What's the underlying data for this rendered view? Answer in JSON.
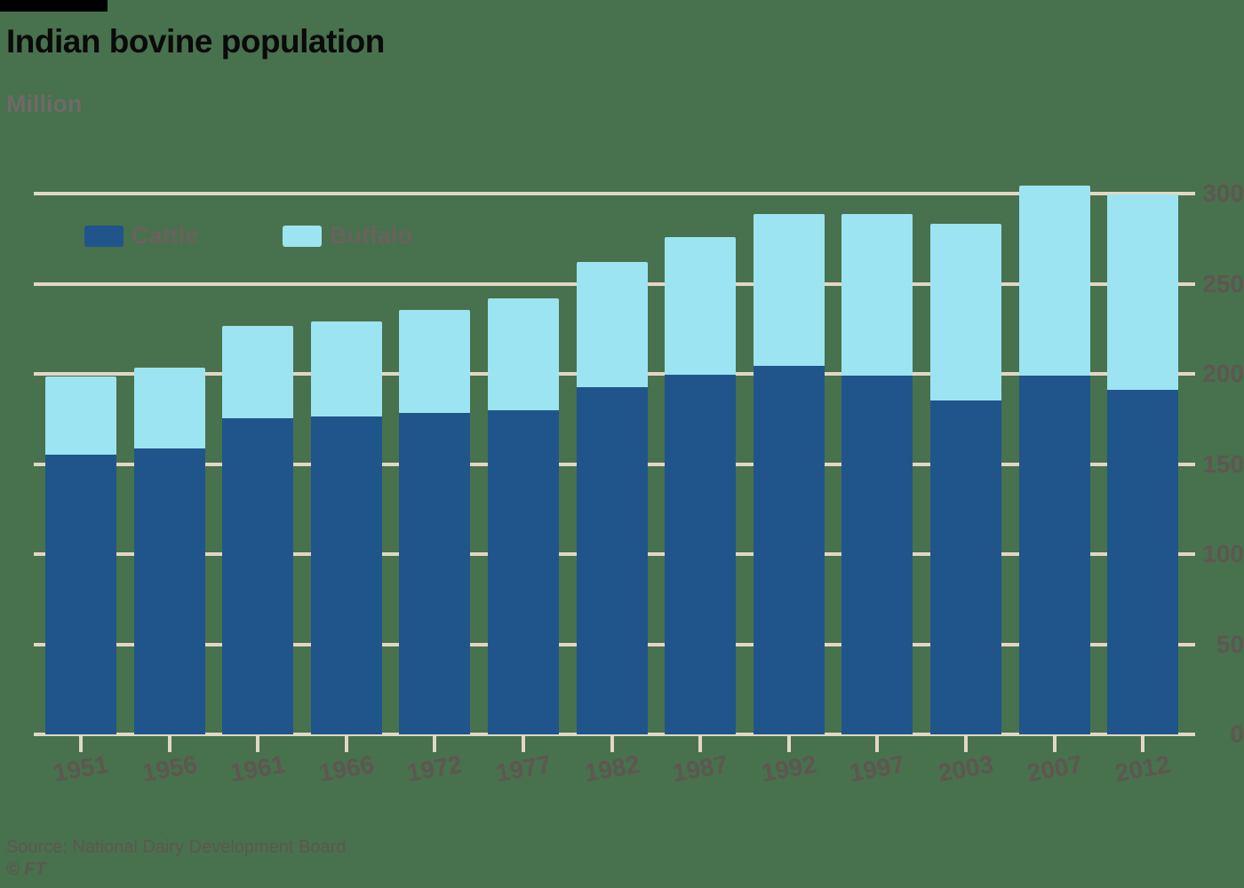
{
  "header": {
    "title": "Indian bovine population",
    "subtitle": "Million"
  },
  "legend": [
    {
      "label": "Cattle",
      "color": "#20558C"
    },
    {
      "label": "Buffalo",
      "color": "#9CE4F1"
    }
  ],
  "footer": {
    "source": "Source: National Dairy Development Board",
    "copyright": "© FT"
  },
  "colors": {
    "background": "#48714D",
    "cattle": "#20558C",
    "buffalo": "#9CE4F1",
    "gridline": "#E2D7C6",
    "title_text": "#0A0A0A",
    "axis_text": "#5D5751",
    "subtitle_text": "#6E6A67",
    "legend_text": "#68635D",
    "source_text": "#5C5751"
  },
  "chart_data": {
    "type": "bar",
    "stacked": true,
    "title": "Indian bovine population",
    "ylabel": "Million",
    "xlabel": "",
    "ylim": [
      0,
      300
    ],
    "yticks": [
      0,
      50,
      100,
      150,
      200,
      250,
      300
    ],
    "grid": true,
    "legend_position": "top-left",
    "ytick_label_side": "right",
    "categories": [
      "1951",
      "1956",
      "1961",
      "1966",
      "1972",
      "1977",
      "1982",
      "1987",
      "1992",
      "1997",
      "2003",
      "2007",
      "2012"
    ],
    "series": [
      {
        "name": "Cattle",
        "color": "#20558C",
        "values": [
          155.3,
          158.7,
          175.6,
          176.2,
          178.3,
          180.0,
          192.5,
          199.7,
          204.6,
          198.9,
          185.2,
          199.1,
          190.9
        ]
      },
      {
        "name": "Buffalo",
        "color": "#9CE4F1",
        "values": [
          43.4,
          44.9,
          51.2,
          53.0,
          57.4,
          62.0,
          69.8,
          76.0,
          84.2,
          89.9,
          97.9,
          105.3,
          108.7
        ]
      }
    ]
  }
}
